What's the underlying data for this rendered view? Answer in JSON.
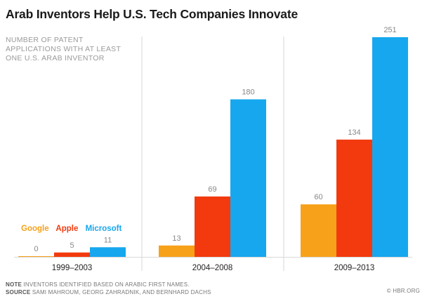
{
  "header": {
    "title": "Arab Inventors Help U.S. Tech Companies Innovate",
    "subtitle_lines": [
      "NUMBER OF PATENT",
      "APPLICATIONS WITH AT LEAST",
      "ONE U.S. ARAB INVENTOR"
    ]
  },
  "chart_data": {
    "type": "bar",
    "title": "Arab Inventors Help U.S. Tech Companies Innovate",
    "subtitle": "NUMBER OF PATENT APPLICATIONS WITH AT LEAST ONE U.S. ARAB INVENTOR",
    "categories": [
      "1999–2003",
      "2004–2008",
      "2009–2013"
    ],
    "series": [
      {
        "name": "Google",
        "color": "#f7a11a",
        "values": [
          0,
          13,
          60
        ]
      },
      {
        "name": "Apple",
        "color": "#f23a0e",
        "values": [
          5,
          69,
          134
        ]
      },
      {
        "name": "Microsoft",
        "color": "#17a7ee",
        "values": [
          11,
          180,
          251
        ]
      }
    ],
    "ylim": [
      0,
      251
    ],
    "grid": false,
    "legend_position": "bottom-left"
  },
  "footer": {
    "note_label": "NOTE",
    "note_text": "INVENTORS IDENTIFIED BASED ON ARABIC FIRST NAMES.",
    "source_label": "SOURCE",
    "source_text": "SAMI MAHROUM, GEORG ZAHRADNIK, AND BERNHARD DACHS",
    "credit": "© HBR.ORG"
  }
}
